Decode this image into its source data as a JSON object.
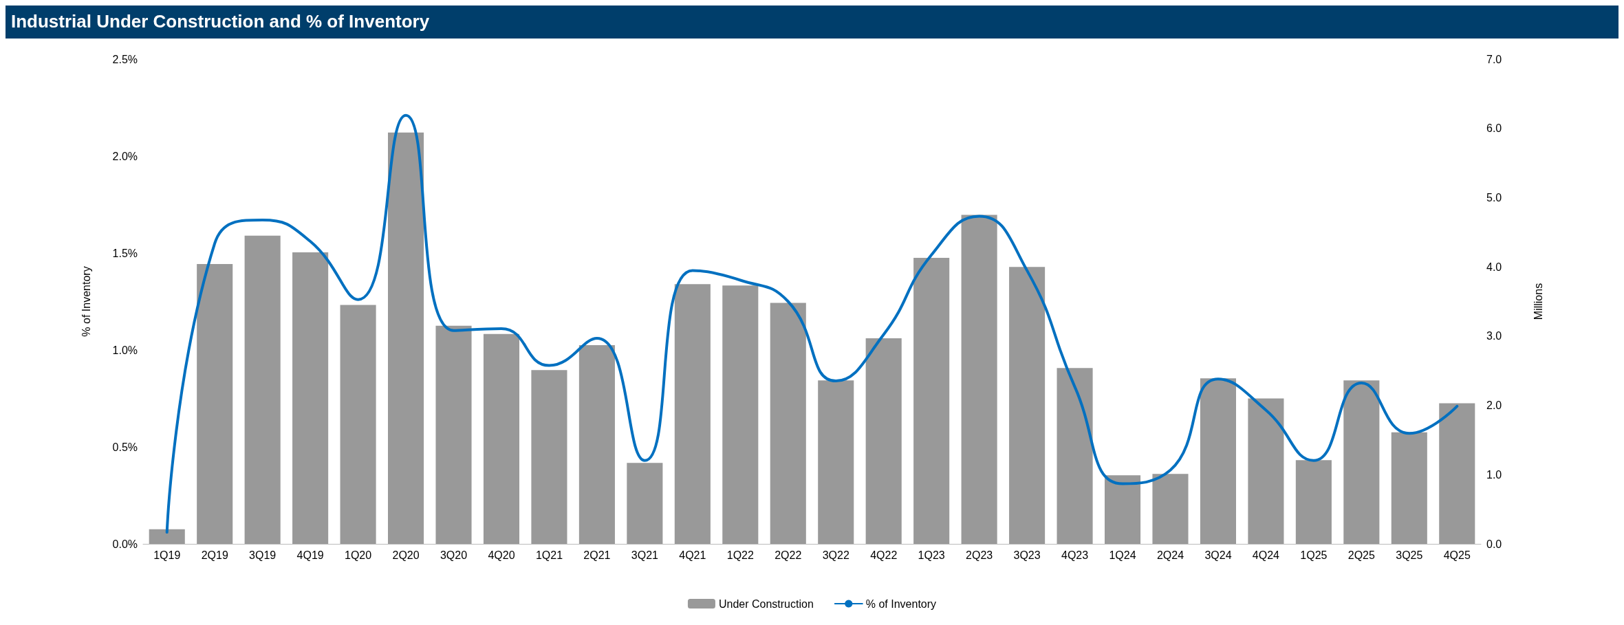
{
  "chart_data": {
    "type": "bar",
    "title": "Industrial Under Construction and % of Inventory",
    "ylabel": "% of Inventory",
    "y2label": "Millions",
    "categories": [
      "1Q19",
      "2Q19",
      "3Q19",
      "4Q19",
      "1Q20",
      "2Q20",
      "3Q20",
      "4Q20",
      "1Q21",
      "2Q21",
      "3Q21",
      "4Q21",
      "1Q22",
      "2Q22",
      "3Q22",
      "4Q22",
      "1Q23",
      "2Q23",
      "3Q23",
      "4Q23",
      "1Q24",
      "2Q24",
      "3Q24",
      "4Q24",
      "1Q25",
      "2Q25",
      "3Q25",
      "4Q25"
    ],
    "series": [
      {
        "name": "Under Construction",
        "axis": "y2",
        "color": "#999999",
        "values": [
          0.21,
          4.04,
          4.45,
          4.21,
          3.45,
          5.94,
          3.15,
          3.03,
          2.51,
          2.87,
          1.17,
          3.75,
          3.73,
          3.48,
          2.36,
          2.97,
          4.13,
          4.75,
          4.0,
          2.54,
          0.99,
          1.01,
          2.39,
          2.1,
          1.21,
          2.36,
          1.61,
          2.03
        ]
      },
      {
        "name": "% of Inventory",
        "type": "line",
        "color": "#0070c0",
        "values": [
          0.06,
          1.55,
          1.67,
          1.56,
          1.26,
          2.21,
          1.1,
          1.11,
          0.92,
          1.06,
          0.43,
          1.41,
          1.36,
          1.25,
          0.84,
          1.08,
          1.49,
          1.69,
          1.41,
          0.81,
          0.31,
          0.38,
          0.85,
          0.69,
          0.43,
          0.83,
          0.57,
          0.71
        ]
      }
    ],
    "ylim": [
      0,
      2.5
    ],
    "yticks": [
      {
        "value": 0,
        "label": "0.0%"
      },
      {
        "value": 0.5,
        "label": "0.5%"
      },
      {
        "value": 1,
        "label": "1.0%"
      },
      {
        "value": 1.5,
        "label": "1.5%"
      },
      {
        "value": 2,
        "label": "2.0%"
      },
      {
        "value": 2.5,
        "label": "2.5%"
      }
    ],
    "y2lim": [
      0,
      7
    ],
    "y2ticks": [
      {
        "value": 0,
        "label": "0.0"
      },
      {
        "value": 1,
        "label": "1.0"
      },
      {
        "value": 2,
        "label": "2.0"
      },
      {
        "value": 3,
        "label": "3.0"
      },
      {
        "value": 4,
        "label": "4.0"
      },
      {
        "value": 5,
        "label": "5.0"
      },
      {
        "value": 6,
        "label": "6.0"
      },
      {
        "value": 7,
        "label": "7.0"
      }
    ],
    "grid": false,
    "legend": "bottom",
    "marker": "none",
    "line_style": "solid"
  }
}
